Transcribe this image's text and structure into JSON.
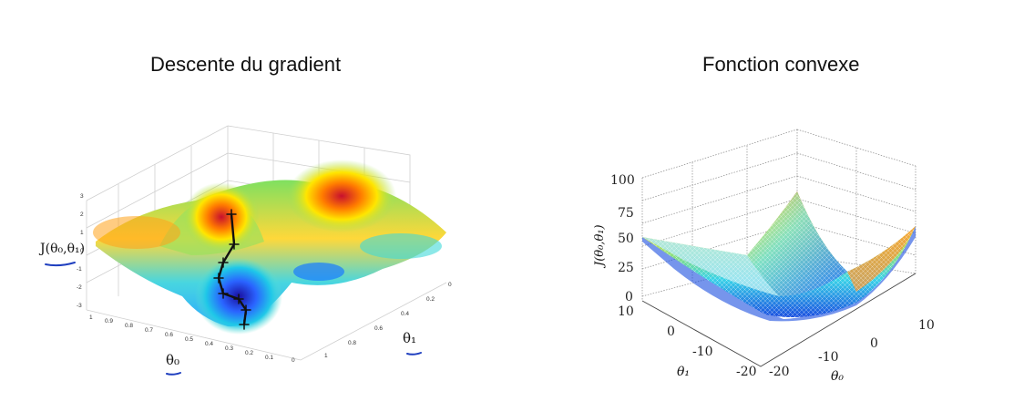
{
  "left": {
    "title": "Descente du gradient",
    "z_axis_label": "J(θ₀,θ₁)",
    "x_axis_label": "θ₀",
    "y_axis_label": "θ₁",
    "z_ticks": [
      "3",
      "2",
      "1",
      "0",
      "-1",
      "-2",
      "-3"
    ],
    "x_ticks": [
      "1",
      "0.9",
      "0.8",
      "0.7",
      "0.6",
      "0.5",
      "0.4",
      "0.3",
      "0.2",
      "0.1",
      "0"
    ],
    "y_ticks": [
      "0",
      "0.2",
      "0.4",
      "0.6",
      "0.8",
      "1"
    ],
    "annotation_color": "#1f3fbf"
  },
  "right": {
    "title": "Fonction convexe",
    "z_axis_label": "J(θ₀,θ₁)",
    "x_axis_label": "θ₁",
    "y_axis_label": "θ₀",
    "z_ticks": [
      "100",
      "75",
      "50",
      "25",
      "0"
    ],
    "x_ticks": [
      "10",
      "0",
      "-10",
      "-20"
    ],
    "y_ticks": [
      "-20",
      "-10",
      "0",
      "10"
    ]
  }
}
